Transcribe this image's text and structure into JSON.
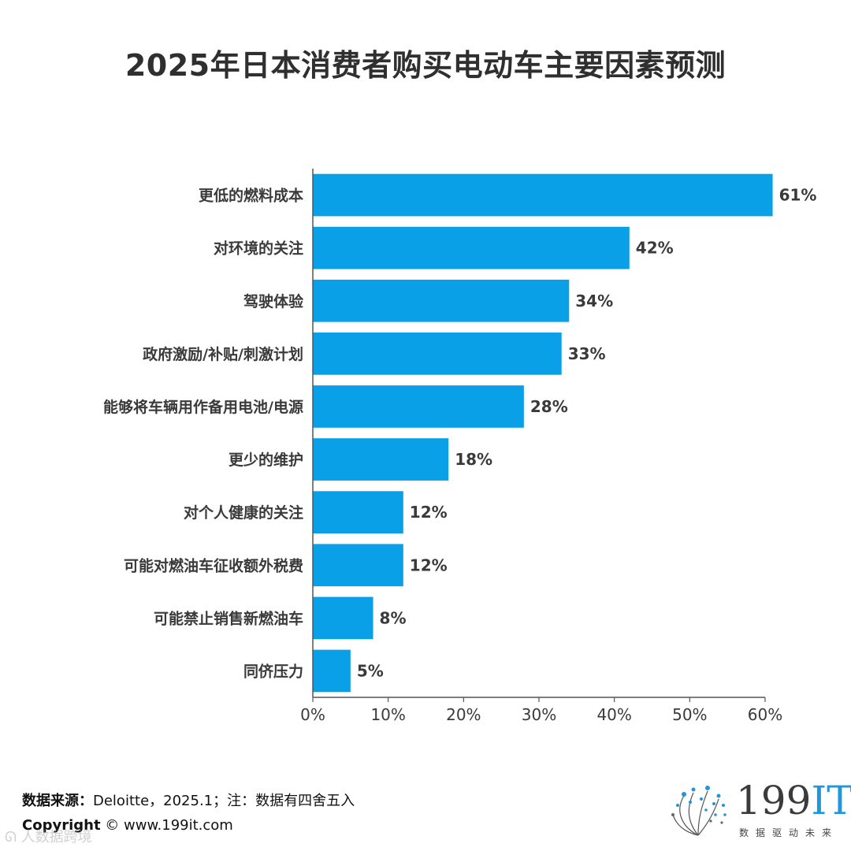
{
  "title": "2025年日本消费者购买电动车主要因素预测",
  "chart_data": {
    "type": "bar",
    "orientation": "horizontal",
    "title": "2025年日本消费者购买电动车主要因素预测",
    "xlabel": "",
    "ylabel": "",
    "xlim": [
      0,
      60
    ],
    "x_ticks": [
      "0%",
      "10%",
      "20%",
      "30%",
      "40%",
      "50%",
      "60%"
    ],
    "categories": [
      "更低的燃料成本",
      "对环境的关注",
      "驾驶体验",
      "政府激励/补贴/刺激计划",
      "能够将车辆用作备用电池/电源",
      "更少的维护",
      "对个人健康的关注",
      "可能对燃油车征收额外税费",
      "可能禁止销售新燃油车",
      "同侪压力"
    ],
    "values": [
      61,
      42,
      34,
      33,
      28,
      18,
      12,
      12,
      8,
      5
    ],
    "value_labels": [
      "61%",
      "42%",
      "34%",
      "33%",
      "28%",
      "18%",
      "12%",
      "12%",
      "8%",
      "5%"
    ],
    "bar_color": "#0aa0e8",
    "grid": false,
    "legend": "none"
  },
  "footer": {
    "source_label": "数据来源：",
    "source_text": "Deloitte，2025.1；注：数据有四舍五入",
    "copyright_label": "Copyright",
    "copyright_text": "©  www.199it.com"
  },
  "logo": {
    "name": "199IT",
    "number": "199",
    "suffix": "IT",
    "slogan": "数据驱动未来"
  },
  "watermark": "人数据跨境"
}
